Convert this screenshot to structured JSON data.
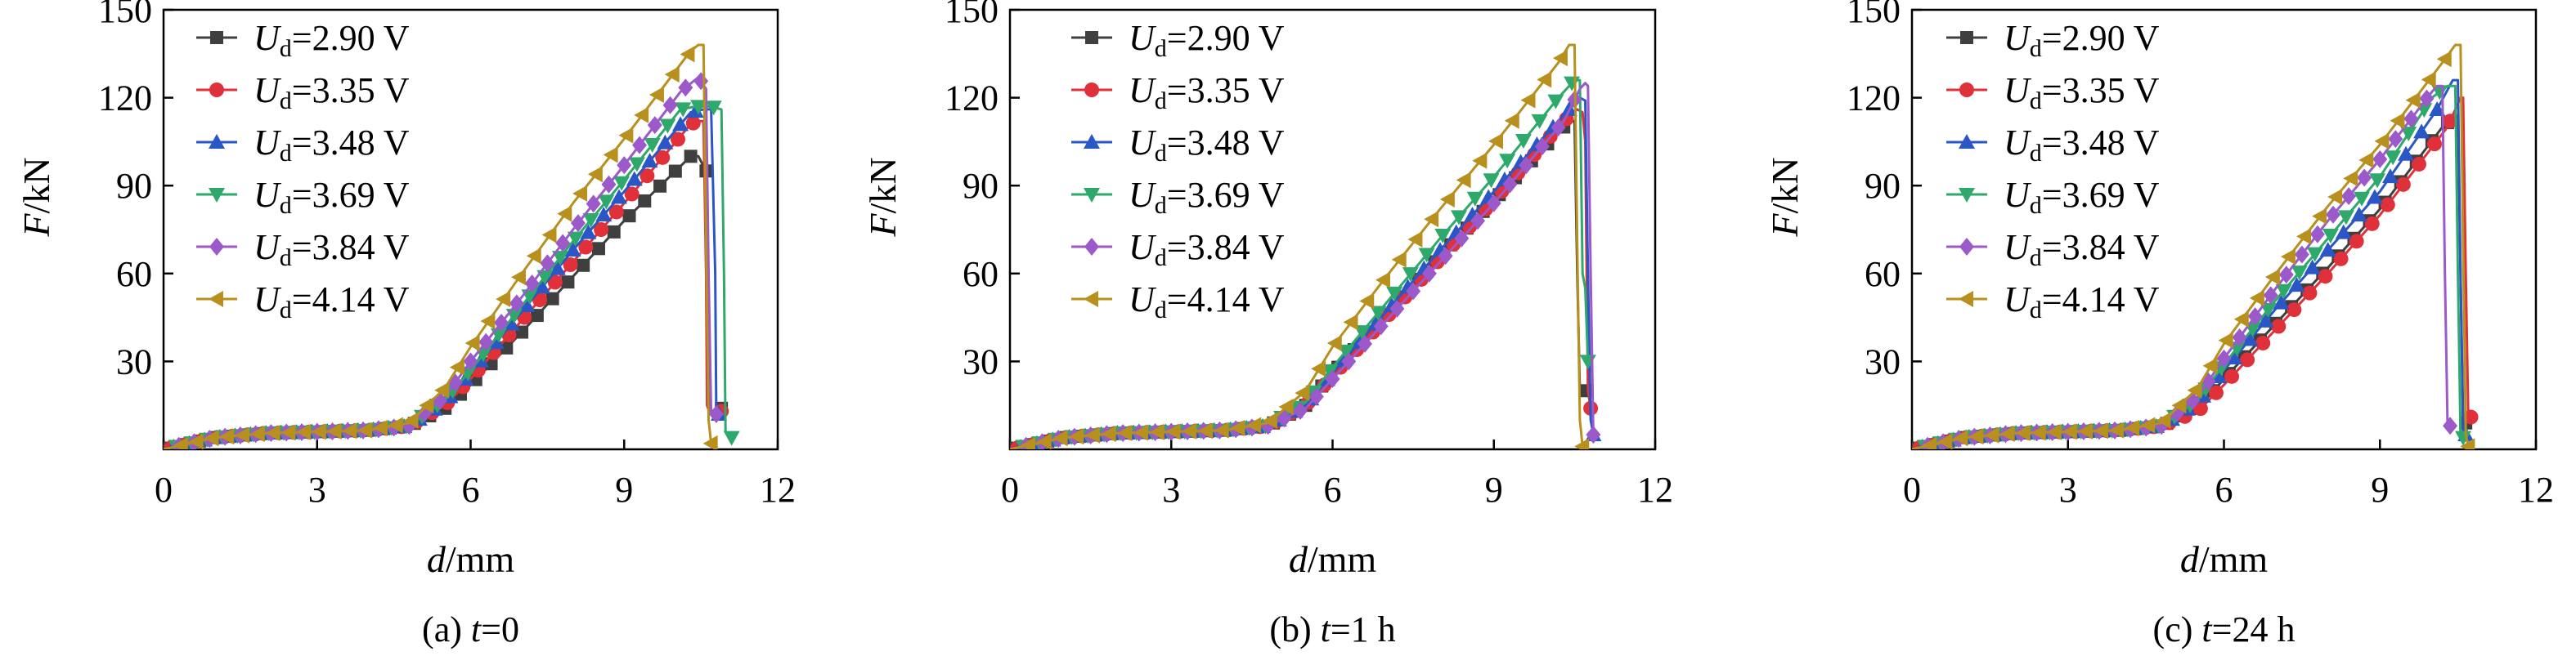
{
  "figure": {
    "panels": [
      {
        "caption_prefix": "(a) ",
        "caption_var": "t",
        "caption_rest": "=0",
        "ylabel_var": "F",
        "ylabel_unit": "/kN",
        "xlabel_var": "d",
        "xlabel_unit": "/mm"
      },
      {
        "caption_prefix": "(b) ",
        "caption_var": "t",
        "caption_rest": "=1 h",
        "ylabel_var": "F",
        "ylabel_unit": "/kN",
        "xlabel_var": "d",
        "xlabel_unit": "/mm"
      },
      {
        "caption_prefix": "(c) ",
        "caption_var": "t",
        "caption_rest": "=24 h",
        "ylabel_var": "F",
        "ylabel_unit": "/kN",
        "xlabel_var": "d",
        "xlabel_unit": "/mm"
      }
    ],
    "legend": {
      "var": "U",
      "sub": "d",
      "values": [
        "=2.90 V",
        "=3.35 V",
        "=3.48 V",
        "=3.69 V",
        "=3.84 V",
        "=4.14 V"
      ]
    },
    "x_tick_labels": [
      "0",
      "3",
      "6",
      "9",
      "12"
    ],
    "y_tick_labels": [
      "30",
      "60",
      "90",
      "120",
      "150"
    ]
  },
  "chart_data": [
    {
      "type": "line",
      "title": "(a) t=0",
      "xlabel": "d/mm",
      "ylabel": "F/kN",
      "xlim": [
        0,
        12
      ],
      "ylim": [
        0,
        150
      ],
      "xticks": [
        0,
        3,
        6,
        9,
        12
      ],
      "yticks": [
        30,
        60,
        90,
        120,
        150
      ],
      "legend": "top-left",
      "series": [
        {
          "name": "Ud=2.90 V",
          "color": "#3f3f3f",
          "marker": "square",
          "x": [
            0,
            1,
            2,
            3,
            4,
            4.8,
            5.5,
            6,
            7,
            8,
            9,
            10.3,
            10.45,
            10.6,
            10.65,
            10.68,
            10.7,
            10.9
          ],
          "y": [
            0,
            4,
            5.5,
            6,
            6.5,
            8,
            14,
            22,
            40,
            59,
            78,
            100,
            100,
            95,
            40,
            15,
            13,
            14
          ]
        },
        {
          "name": "Ud=3.35 V",
          "color": "#e0303a",
          "marker": "circle",
          "x": [
            0,
            1,
            2,
            3,
            4,
            4.8,
            5.5,
            6,
            7,
            8,
            9,
            10.3,
            10.45,
            10.55,
            10.6,
            10.62,
            10.68,
            10.9
          ],
          "y": [
            0,
            4,
            5.5,
            6,
            6.5,
            8,
            15,
            24,
            44,
            64,
            84,
            111,
            112,
            112,
            60,
            15,
            12,
            13
          ]
        },
        {
          "name": "Ud=3.48 V",
          "color": "#2a56c6",
          "marker": "triangle-up",
          "x": [
            0,
            1,
            2,
            3,
            4,
            4.8,
            5.5,
            6,
            7,
            8,
            9,
            10.3,
            10.55,
            10.7,
            10.78,
            10.8,
            10.85
          ],
          "y": [
            0,
            4,
            5.5,
            6,
            6.5,
            8,
            16,
            26,
            47,
            68,
            88,
            115,
            116,
            116,
            60,
            12,
            12
          ]
        },
        {
          "name": "Ud=3.69 V",
          "color": "#2ea86b",
          "marker": "triangle-down",
          "x": [
            0,
            1,
            2,
            3,
            4,
            4.8,
            5.5,
            6,
            7,
            8,
            9,
            10.1,
            10.4,
            10.7,
            10.9,
            10.95,
            10.98,
            11.1
          ],
          "y": [
            0,
            4,
            5.5,
            6,
            6.5,
            8,
            17,
            27,
            49,
            71,
            92,
            116,
            117,
            117,
            116,
            60,
            6,
            4
          ]
        },
        {
          "name": "Ud=3.84 V",
          "color": "#9b59c9",
          "marker": "diamond",
          "x": [
            0,
            1,
            2,
            3,
            4,
            4.8,
            5.5,
            6,
            7,
            8,
            9,
            10.1,
            10.45,
            10.6,
            10.65,
            10.7,
            10.8
          ],
          "y": [
            0,
            4,
            5.5,
            6,
            6.5,
            8,
            18,
            30,
            52,
            75,
            97,
            122,
            127,
            123,
            60,
            12,
            12
          ]
        },
        {
          "name": "Ud=4.14 V",
          "color": "#b8901e",
          "marker": "triangle-left",
          "x": [
            0,
            1,
            2,
            3,
            4,
            4.8,
            5.5,
            6,
            7,
            8,
            9,
            10.3,
            10.45,
            10.55,
            10.6,
            10.65,
            10.7
          ],
          "y": [
            0,
            4,
            5.5,
            6,
            6.5,
            9,
            21,
            35,
            60,
            84,
            106,
            136,
            138,
            138,
            70,
            10,
            2
          ]
        }
      ]
    },
    {
      "type": "line",
      "title": "(b) t=1 h",
      "xlabel": "d/mm",
      "ylabel": "F/kN",
      "xlim": [
        0,
        12
      ],
      "ylim": [
        0,
        150
      ],
      "xticks": [
        0,
        3,
        6,
        9,
        12
      ],
      "yticks": [
        30,
        60,
        90,
        120,
        150
      ],
      "legend": "top-left",
      "series": [
        {
          "name": "Ud=2.90 V",
          "color": "#3f3f3f",
          "marker": "square",
          "x": [
            0,
            1,
            2,
            3,
            4,
            4.8,
            5.5,
            6,
            7,
            8,
            9,
            10.3,
            10.45,
            10.5,
            10.55,
            10.6,
            10.7
          ],
          "y": [
            0,
            4,
            5.5,
            6,
            6.5,
            8,
            15,
            26,
            46,
            66,
            85,
            110,
            112,
            112,
            60,
            20,
            20
          ]
        },
        {
          "name": "Ud=3.35 V",
          "color": "#e0303a",
          "marker": "circle",
          "x": [
            0,
            1,
            2,
            3,
            4,
            4.8,
            5.5,
            6,
            7,
            8,
            9,
            10.3,
            10.55,
            10.65,
            10.7,
            10.75,
            10.8
          ],
          "y": [
            0,
            4,
            5.5,
            6,
            6.5,
            8,
            15,
            25,
            45,
            65,
            85,
            112,
            116,
            115,
            105,
            20,
            14
          ]
        },
        {
          "name": "Ud=3.48 V",
          "color": "#2a56c6",
          "marker": "triangle-up",
          "x": [
            0,
            1,
            2,
            3,
            4,
            4.8,
            5.5,
            6,
            7,
            8,
            9,
            10.3,
            10.6,
            10.7,
            10.75,
            10.8,
            10.85
          ],
          "y": [
            0,
            4,
            5.5,
            6,
            6.5,
            8,
            15,
            26,
            47,
            68,
            88,
            114,
            120,
            119,
            60,
            10,
            5
          ]
        },
        {
          "name": "Ud=3.69 V",
          "color": "#2ea86b",
          "marker": "triangle-down",
          "x": [
            0,
            1,
            2,
            3,
            4,
            4.8,
            5.5,
            6,
            7,
            8,
            9,
            10.2,
            10.5,
            10.6,
            10.65,
            10.7,
            10.75
          ],
          "y": [
            0,
            4,
            5.5,
            6,
            6.5,
            8,
            16,
            28,
            50,
            72,
            93,
            120,
            126,
            126,
            60,
            55,
            30
          ]
        },
        {
          "name": "Ud=3.84 V",
          "color": "#9b59c9",
          "marker": "diamond",
          "x": [
            0,
            1,
            2,
            3,
            4,
            4.8,
            5.5,
            6,
            7,
            8,
            9,
            10.3,
            10.6,
            10.7,
            10.75,
            10.8,
            10.85
          ],
          "y": [
            0,
            4,
            5.5,
            6,
            6.5,
            8,
            14,
            24,
            44,
            64,
            84,
            112,
            123,
            125,
            124,
            60,
            5
          ]
        },
        {
          "name": "Ud=4.14 V",
          "color": "#b8901e",
          "marker": "triangle-left",
          "x": [
            0,
            1,
            2,
            3,
            4,
            4.8,
            5.5,
            6,
            7,
            8,
            9,
            10.2,
            10.4,
            10.5,
            10.55,
            10.6,
            10.65
          ],
          "y": [
            0,
            4,
            5.5,
            6,
            6.5,
            9,
            20,
            35,
            59,
            82,
            104,
            132,
            138,
            138,
            70,
            10,
            1
          ]
        }
      ]
    },
    {
      "type": "line",
      "title": "(c) t=24 h",
      "xlabel": "d/mm",
      "ylabel": "F/kN",
      "xlim": [
        0,
        12
      ],
      "ylim": [
        0,
        150
      ],
      "xticks": [
        0,
        3,
        6,
        9,
        12
      ],
      "yticks": [
        30,
        60,
        90,
        120,
        150
      ],
      "legend": "top-left",
      "series": [
        {
          "name": "Ud=2.90 V",
          "color": "#3f3f3f",
          "marker": "square",
          "x": [
            0,
            1,
            2,
            3,
            4,
            4.8,
            5.5,
            6,
            7,
            8,
            9,
            10.2,
            10.4,
            10.5,
            10.55,
            10.6,
            10.65
          ],
          "y": [
            0,
            4,
            5.5,
            6,
            6.5,
            8,
            14,
            24,
            43,
            62,
            82,
            110,
            113,
            114,
            60,
            10,
            9
          ]
        },
        {
          "name": "Ud=3.35 V",
          "color": "#e0303a",
          "marker": "circle",
          "x": [
            0,
            1,
            2,
            3,
            4,
            4.8,
            5.5,
            6,
            7,
            8,
            9,
            10.3,
            10.55,
            10.6,
            10.65,
            10.7,
            10.75
          ],
          "y": [
            0,
            4,
            5.5,
            6,
            6.5,
            8,
            13,
            22,
            41,
            60,
            80,
            110,
            120,
            120,
            60,
            11,
            11
          ]
        },
        {
          "name": "Ud=3.48 V",
          "color": "#2a56c6",
          "marker": "triangle-up",
          "x": [
            0,
            1,
            2,
            3,
            4,
            4.8,
            5.5,
            6,
            7,
            8,
            9,
            10.1,
            10.4,
            10.5,
            10.55,
            10.6,
            10.65
          ],
          "y": [
            0,
            4,
            5.5,
            6,
            6.5,
            8,
            16,
            27,
            48,
            68,
            88,
            116,
            126,
            126,
            60,
            5,
            5
          ]
        },
        {
          "name": "Ud=3.69 V",
          "color": "#2ea86b",
          "marker": "triangle-down",
          "x": [
            0,
            1,
            2,
            3,
            4,
            4.8,
            5.5,
            6,
            7,
            8,
            9,
            10.0,
            10.3,
            10.45,
            10.5,
            10.55,
            10.6
          ],
          "y": [
            0,
            4,
            5.5,
            6,
            6.5,
            8,
            17,
            29,
            51,
            72,
            93,
            120,
            124,
            124,
            60,
            5,
            4
          ]
        },
        {
          "name": "Ud=3.84 V",
          "color": "#9b59c9",
          "marker": "diamond",
          "x": [
            0,
            1,
            2,
            3,
            4,
            4.8,
            5.5,
            6,
            7,
            8,
            9,
            10.0,
            10.1,
            10.2,
            10.25,
            10.3,
            10.35
          ],
          "y": [
            0,
            4,
            5.5,
            6,
            6.5,
            8,
            18,
            31,
            55,
            78,
            99,
            122,
            124,
            124,
            60,
            9,
            8
          ]
        },
        {
          "name": "Ud=4.14 V",
          "color": "#b8901e",
          "marker": "triangle-left",
          "x": [
            0,
            1,
            2,
            3,
            4,
            4.8,
            5.5,
            6,
            7,
            8,
            9,
            10.2,
            10.45,
            10.55,
            10.6,
            10.65,
            10.7
          ],
          "y": [
            0,
            4,
            5.5,
            6,
            6.5,
            9,
            21,
            36,
            60,
            83,
            104,
            132,
            138,
            138,
            70,
            5,
            1
          ]
        }
      ]
    }
  ]
}
